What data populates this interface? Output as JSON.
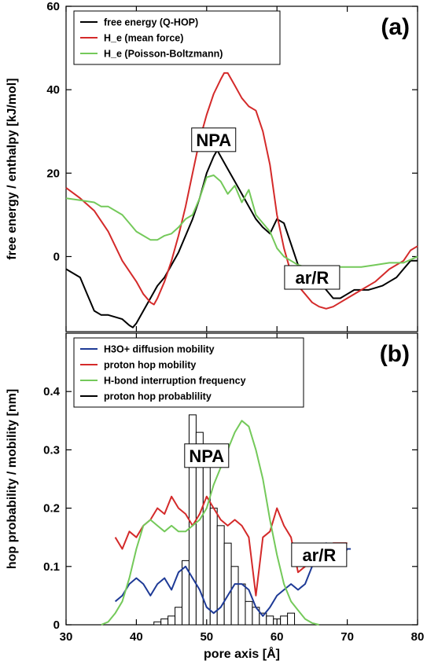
{
  "chart_data": [
    {
      "type": "line",
      "panel_label": "(a)",
      "ylabel": "free energy / enthalpy [kJ/mol]",
      "xlim": [
        30,
        80
      ],
      "ylim": [
        -18,
        60
      ],
      "yticks": [
        0,
        20,
        40,
        60
      ],
      "legend_position": "top-left",
      "annotations": [
        {
          "text": "NPA",
          "x": 51,
          "y": 28
        },
        {
          "text": "ar/R",
          "x": 65,
          "y": -5
        }
      ],
      "series": [
        {
          "name": "free energy (Q-HOP)",
          "color": "#000000",
          "x": [
            30,
            32,
            33,
            34,
            35,
            36,
            37,
            38,
            39,
            39.5,
            40,
            41,
            42,
            43,
            44,
            45,
            46,
            47,
            48,
            49,
            50,
            51,
            51.5,
            52,
            53,
            54,
            55,
            56,
            57,
            58,
            59,
            60,
            61,
            62,
            63,
            64,
            65,
            66,
            67,
            68,
            69,
            70,
            71,
            72,
            73,
            74,
            75,
            76,
            77,
            78,
            79,
            80
          ],
          "y": [
            -3,
            -5,
            -9,
            -13,
            -14,
            -14,
            -14.5,
            -15,
            -16.5,
            -17,
            -16,
            -13,
            -10,
            -7,
            -5,
            -2,
            1,
            5,
            9,
            14,
            20,
            24,
            25.5,
            24,
            21,
            18,
            15,
            12,
            9,
            7,
            5.5,
            9,
            8,
            3,
            -2,
            -4,
            -5,
            -6,
            -8,
            -10,
            -10,
            -9,
            -8,
            -8,
            -8,
            -7.5,
            -7,
            -6,
            -5,
            -3,
            -1,
            -1
          ]
        },
        {
          "name": "H_e (mean force)",
          "color": "#d42a2a",
          "x": [
            30,
            32,
            34,
            36,
            38,
            40,
            41,
            42,
            42.5,
            43,
            44,
            45,
            46,
            47,
            48,
            49,
            50,
            51,
            52,
            52.5,
            53,
            54,
            55,
            56,
            57,
            58,
            59,
            60,
            61,
            62,
            63,
            64,
            65,
            66,
            67,
            68,
            69,
            70,
            72,
            74,
            76,
            78,
            79,
            80
          ],
          "y": [
            16.5,
            14,
            11,
            6,
            -1,
            -6,
            -9,
            -11,
            -11.5,
            -10,
            -6,
            -1,
            5,
            12,
            20,
            28,
            34,
            39,
            42.5,
            44,
            44,
            41,
            38,
            36,
            35,
            30,
            22,
            10,
            2,
            -4,
            -7,
            -9,
            -11,
            -12,
            -12.5,
            -12,
            -11,
            -10,
            -8,
            -6,
            -3,
            -1,
            1.5,
            2.5
          ]
        },
        {
          "name": "H_e (Poisson-Boltzmann)",
          "color": "#74c95a",
          "x": [
            30,
            32,
            34,
            35,
            36,
            37,
            38,
            39,
            40,
            41,
            42,
            43,
            44,
            45,
            46,
            47,
            48,
            49,
            50,
            51,
            52,
            53,
            54,
            55,
            56,
            57,
            58,
            59,
            60,
            61,
            62,
            63,
            64,
            65,
            66,
            67,
            68,
            70,
            72,
            74,
            76,
            78,
            80
          ],
          "y": [
            14,
            13.5,
            13,
            12,
            12,
            11,
            10,
            8,
            6,
            5,
            4,
            4,
            5,
            5.5,
            7,
            9,
            10,
            14,
            19,
            19.5,
            18,
            15,
            17,
            13,
            16,
            10,
            8,
            6,
            2,
            0,
            -1,
            -2,
            -2.5,
            -3.5,
            -3,
            -3,
            -2.5,
            -2.5,
            -2.5,
            -2,
            -1.5,
            -1.5,
            0
          ]
        }
      ]
    },
    {
      "type": "line",
      "panel_label": "(b)",
      "xlabel": "pore axis [Å]",
      "ylabel": "hop probability / mobility [nm]",
      "xlim": [
        30,
        80
      ],
      "ylim": [
        0,
        0.5
      ],
      "xticks": [
        30,
        40,
        50,
        60,
        70,
        80
      ],
      "yticks": [
        0,
        0.1,
        0.2,
        0.3,
        0.4
      ],
      "legend_position": "top-left",
      "annotations": [
        {
          "text": "NPA",
          "x": 50,
          "y": 0.29
        },
        {
          "text": "ar/R",
          "x": 66,
          "y": 0.12
        }
      ],
      "series": [
        {
          "name": "H3O+ diffusion mobility",
          "color": "#1e3a96",
          "x": [
            37,
            38,
            39,
            40,
            41,
            42,
            43,
            44,
            45,
            46,
            47,
            48,
            49,
            50,
            51,
            52,
            53,
            54,
            55,
            56,
            57,
            58,
            59,
            60,
            61,
            62,
            63,
            64,
            65,
            66,
            67,
            68,
            69,
            70,
            70.5
          ],
          "y": [
            0.04,
            0.05,
            0.07,
            0.08,
            0.07,
            0.05,
            0.07,
            0.08,
            0.06,
            0.09,
            0.1,
            0.08,
            0.06,
            0.03,
            0.02,
            0.03,
            0.05,
            0.07,
            0.07,
            0.06,
            0.03,
            0.015,
            0.03,
            0.05,
            0.06,
            0.07,
            0.06,
            0.07,
            0.1,
            0.13,
            0.14,
            0.12,
            0.11,
            0.13,
            0.13
          ]
        },
        {
          "name": "proton hop mobility",
          "color": "#d42a2a",
          "x": [
            37,
            38,
            39,
            40,
            41,
            42,
            43,
            44,
            45,
            46,
            47,
            48,
            49,
            50,
            51,
            52,
            53,
            54,
            55,
            56,
            56.5,
            57,
            57.5,
            58,
            59,
            60,
            61,
            62,
            63,
            64,
            65,
            66,
            67,
            68,
            69,
            70
          ],
          "y": [
            0.15,
            0.13,
            0.16,
            0.15,
            0.17,
            0.18,
            0.2,
            0.19,
            0.22,
            0.2,
            0.19,
            0.17,
            0.19,
            0.22,
            0.2,
            0.18,
            0.17,
            0.18,
            0.17,
            0.15,
            0.1,
            0.05,
            0.1,
            0.15,
            0.16,
            0.2,
            0.17,
            0.15,
            0.09,
            0.1,
            0.12,
            0.13,
            0.13,
            0.14,
            0.14,
            0.14
          ]
        },
        {
          "name": "H-bond interruption frequency",
          "color": "#74c95a",
          "x": [
            35,
            36,
            37,
            38,
            39,
            40,
            41,
            42,
            43,
            44,
            45,
            46,
            47,
            48,
            49,
            50,
            51,
            52,
            53,
            54,
            55,
            56,
            57,
            58,
            59,
            60,
            61,
            62,
            63,
            64,
            65,
            66
          ],
          "y": [
            0,
            0.005,
            0.02,
            0.04,
            0.08,
            0.13,
            0.17,
            0.18,
            0.17,
            0.16,
            0.17,
            0.16,
            0.16,
            0.17,
            0.18,
            0.2,
            0.24,
            0.27,
            0.3,
            0.33,
            0.35,
            0.34,
            0.3,
            0.25,
            0.18,
            0.12,
            0.07,
            0.04,
            0.025,
            0.01,
            0.003,
            0
          ]
        },
        {
          "name": "proton hop probablility",
          "color": "#000000",
          "style": "histogram",
          "bin_width": 1,
          "x": [
            43,
            44,
            45,
            46,
            47,
            48,
            49,
            50,
            51,
            52,
            53,
            54,
            55,
            56,
            57,
            58,
            59,
            60,
            61,
            62
          ],
          "y": [
            0.005,
            0.01,
            0.015,
            0.03,
            0.11,
            0.36,
            0.33,
            0.28,
            0.2,
            0.17,
            0.14,
            0.1,
            0.07,
            0.04,
            0.03,
            0.02,
            0.015,
            0.01,
            0.015,
            0.02
          ]
        }
      ]
    }
  ]
}
